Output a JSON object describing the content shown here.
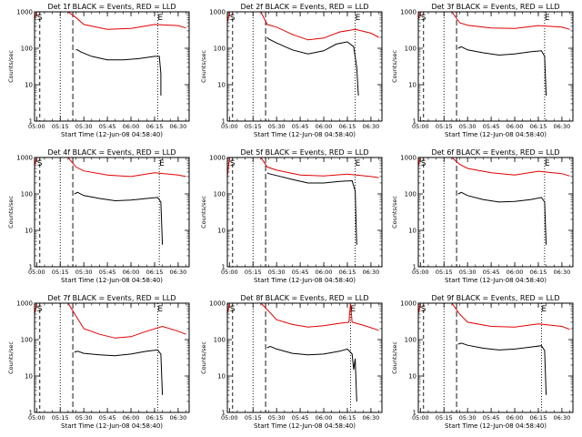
{
  "colors": {
    "events": "#000000",
    "lld": "#e00000",
    "axes": "#000000",
    "background": "#ffffff"
  },
  "chart_data": [
    {
      "type": "line",
      "title": "Det 1f BLACK = Events, RED = LLD",
      "xlabel": "Start Time (12-Jun-08 04:58:40)",
      "ylabel": "Counts/sec",
      "x_ticks": [
        "05:00",
        "05:15",
        "05:30",
        "05:45",
        "06:00",
        "06:15",
        "06:30"
      ],
      "y_ticks": [
        "1",
        "10",
        "100",
        "1000"
      ],
      "ylim": [
        1,
        1000
      ],
      "y_scale": "log",
      "xlim": [
        "04:58:40",
        "06:37:00"
      ],
      "annotations": [
        "S",
        "E"
      ],
      "marker_lines": [
        "05:02",
        "05:15",
        "05:23",
        "06:17"
      ],
      "series": [
        {
          "name": "Events",
          "x": [
            "05:25",
            "05:26",
            "05:28",
            "05:35",
            "05:45",
            "05:55",
            "06:05",
            "06:15",
            "06:18",
            "06:19",
            "06:19"
          ],
          "values": [
            90,
            90,
            80,
            60,
            48,
            48,
            52,
            60,
            60,
            20,
            5
          ]
        },
        {
          "name": "LLD",
          "x": [
            "04:58:40",
            "05:00",
            "05:02",
            "05:05",
            "05:10",
            "05:15",
            "05:20",
            "05:25",
            "05:30",
            "05:45",
            "06:00",
            "06:15",
            "06:30",
            "06:35"
          ],
          "values": [
            600,
            1000,
            1000,
            1000,
            1000,
            1000,
            1000,
            700,
            450,
            330,
            350,
            450,
            420,
            360
          ]
        }
      ]
    },
    {
      "type": "line",
      "title": "Det 2f BLACK = Events, RED = LLD",
      "xlabel": "Start Time (12-Jun-08 04:58:40)",
      "ylabel": "Counts/sec",
      "x_ticks": [
        "05:00",
        "05:15",
        "05:30",
        "05:45",
        "06:00",
        "06:15",
        "06:30"
      ],
      "y_ticks": [
        "1",
        "10",
        "100",
        "1000"
      ],
      "ylim": [
        1,
        1000
      ],
      "y_scale": "log",
      "xlim": [
        "04:58:40",
        "06:37:00"
      ],
      "annotations": [
        "S",
        "E"
      ],
      "marker_lines": [
        "05:02",
        "05:15",
        "05:23",
        "06:20"
      ],
      "series": [
        {
          "name": "Events",
          "x": [
            "05:24",
            "05:25",
            "05:30",
            "05:40",
            "05:50",
            "06:00",
            "06:08",
            "06:15",
            "06:19",
            "06:21",
            "06:22"
          ],
          "values": [
            200,
            180,
            140,
            90,
            70,
            85,
            130,
            150,
            110,
            30,
            5
          ]
        },
        {
          "name": "LLD",
          "x": [
            "04:58:40",
            "05:00",
            "05:05",
            "05:15",
            "05:20",
            "05:24",
            "05:30",
            "05:40",
            "05:50",
            "06:00",
            "06:10",
            "06:20",
            "06:30",
            "06:35"
          ],
          "values": [
            500,
            1000,
            1000,
            1000,
            1000,
            450,
            380,
            240,
            170,
            190,
            280,
            330,
            260,
            200
          ]
        }
      ]
    },
    {
      "type": "line",
      "title": "Det 3f BLACK = Events, RED = LLD",
      "xlabel": "Start Time (12-Jun-08 04:58:40)",
      "ylabel": "Counts/sec",
      "x_ticks": [
        "05:00",
        "05:15",
        "05:30",
        "05:45",
        "06:00",
        "06:15",
        "06:30"
      ],
      "y_ticks": [
        "1",
        "10",
        "100",
        "1000"
      ],
      "ylim": [
        1,
        1000
      ],
      "y_scale": "log",
      "xlim": [
        "04:58:40",
        "06:37:00"
      ],
      "annotations": [
        "S",
        "E"
      ],
      "marker_lines": [
        "05:02",
        "05:15",
        "05:23",
        "06:19"
      ],
      "series": [
        {
          "name": "Events",
          "x": [
            "05:24",
            "05:26",
            "05:30",
            "05:40",
            "05:50",
            "06:00",
            "06:10",
            "06:17",
            "06:19",
            "06:20"
          ],
          "values": [
            100,
            110,
            90,
            75,
            65,
            70,
            80,
            85,
            60,
            5
          ]
        },
        {
          "name": "LLD",
          "x": [
            "04:58:40",
            "05:00",
            "05:05",
            "05:15",
            "05:20",
            "05:25",
            "05:30",
            "05:45",
            "06:00",
            "06:15",
            "06:30",
            "06:35"
          ],
          "values": [
            600,
            1000,
            1000,
            1000,
            1000,
            500,
            430,
            360,
            350,
            420,
            380,
            330
          ]
        }
      ]
    },
    {
      "type": "line",
      "title": "Det 4f BLACK = Events, RED = LLD",
      "xlabel": "Start Time (12-Jun-08 04:58:40)",
      "ylabel": "Counts/sec",
      "x_ticks": [
        "05:00",
        "05:15",
        "05:30",
        "05:45",
        "06:00",
        "06:15",
        "06:30"
      ],
      "y_ticks": [
        "1",
        "10",
        "100",
        "1000"
      ],
      "ylim": [
        1,
        1000
      ],
      "y_scale": "log",
      "xlim": [
        "04:58:40",
        "06:37:00"
      ],
      "annotations": [
        "S",
        "E"
      ],
      "marker_lines": [
        "05:02",
        "05:15",
        "05:23",
        "06:18"
      ],
      "series": [
        {
          "name": "Events",
          "x": [
            "05:24",
            "05:26",
            "05:30",
            "05:40",
            "05:50",
            "06:00",
            "06:10",
            "06:17",
            "06:19",
            "06:20"
          ],
          "values": [
            100,
            110,
            90,
            75,
            65,
            68,
            75,
            80,
            60,
            4
          ]
        },
        {
          "name": "LLD",
          "x": [
            "04:58:40",
            "05:00",
            "05:05",
            "05:15",
            "05:20",
            "05:25",
            "05:30",
            "05:45",
            "06:00",
            "06:15",
            "06:30",
            "06:35"
          ],
          "values": [
            600,
            1000,
            1000,
            1000,
            1000,
            550,
            430,
            330,
            300,
            380,
            330,
            300
          ]
        }
      ]
    },
    {
      "type": "line",
      "title": "Det 5f BLACK = Events, RED = LLD",
      "xlabel": "Start Time (12-Jun-08 04:58:40)",
      "ylabel": "Counts/sec",
      "x_ticks": [
        "05:00",
        "05:15",
        "05:30",
        "05:45",
        "06:00",
        "06:15",
        "06:30"
      ],
      "y_ticks": [
        "1",
        "10",
        "100",
        "1000"
      ],
      "ylim": [
        1,
        1000
      ],
      "y_scale": "log",
      "xlim": [
        "04:58:40",
        "06:37:00"
      ],
      "annotations": [
        "S",
        "E"
      ],
      "marker_lines": [
        "05:02",
        "05:15",
        "05:23",
        "06:20"
      ],
      "series": [
        {
          "name": "Events",
          "x": [
            "05:24",
            "05:25",
            "05:30",
            "05:40",
            "05:50",
            "06:00",
            "06:10",
            "06:18",
            "06:20",
            "06:21"
          ],
          "values": [
            380,
            360,
            320,
            250,
            200,
            200,
            220,
            230,
            120,
            4
          ]
        },
        {
          "name": "LLD",
          "x": [
            "04:58:40",
            "05:00",
            "05:05",
            "05:15",
            "05:20",
            "05:24",
            "05:30",
            "05:45",
            "06:00",
            "06:15",
            "06:30",
            "06:35"
          ],
          "values": [
            300,
            1000,
            1000,
            1000,
            1000,
            550,
            450,
            330,
            310,
            350,
            300,
            280
          ]
        }
      ]
    },
    {
      "type": "line",
      "title": "Det 6f BLACK = Events, RED = LLD",
      "xlabel": "Start Time (12-Jun-08 04:58:40)",
      "ylabel": "Counts/sec",
      "x_ticks": [
        "05:00",
        "05:15",
        "05:30",
        "05:45",
        "06:00",
        "06:15",
        "06:30"
      ],
      "y_ticks": [
        "1",
        "10",
        "100",
        "1000"
      ],
      "ylim": [
        1,
        1000
      ],
      "y_scale": "log",
      "xlim": [
        "04:58:40",
        "06:37:00"
      ],
      "annotations": [
        "S",
        "E"
      ],
      "marker_lines": [
        "05:02",
        "05:15",
        "05:23",
        "06:19"
      ],
      "series": [
        {
          "name": "Events",
          "x": [
            "05:24",
            "05:26",
            "05:30",
            "05:40",
            "05:50",
            "06:00",
            "06:10",
            "06:17",
            "06:19",
            "06:20"
          ],
          "values": [
            100,
            110,
            90,
            70,
            60,
            62,
            70,
            80,
            60,
            4
          ]
        },
        {
          "name": "LLD",
          "x": [
            "04:58:40",
            "05:00",
            "05:05",
            "05:15",
            "05:20",
            "05:25",
            "05:30",
            "05:45",
            "06:00",
            "06:15",
            "06:30",
            "06:35"
          ],
          "values": [
            600,
            1000,
            1000,
            1000,
            1000,
            650,
            500,
            380,
            330,
            420,
            360,
            310
          ]
        }
      ]
    },
    {
      "type": "line",
      "title": "Det 7f BLACK = Events, RED = LLD",
      "xlabel": "Start Time (12-Jun-08 04:58:40)",
      "ylabel": "Counts/sec",
      "x_ticks": [
        "05:00",
        "05:15",
        "05:30",
        "05:45",
        "06:00",
        "06:15",
        "06:30"
      ],
      "y_ticks": [
        "1",
        "10",
        "100",
        "1000"
      ],
      "ylim": [
        1,
        1000
      ],
      "y_scale": "log",
      "xlim": [
        "04:58:40",
        "06:37:00"
      ],
      "annotations": [
        "S",
        "E"
      ],
      "marker_lines": [
        "05:02",
        "05:15",
        "05:23",
        "06:17"
      ],
      "series": [
        {
          "name": "Events",
          "x": [
            "05:24",
            "05:26",
            "05:30",
            "05:40",
            "05:50",
            "06:00",
            "06:10",
            "06:17",
            "06:19",
            "06:20"
          ],
          "values": [
            45,
            48,
            42,
            38,
            36,
            40,
            48,
            52,
            40,
            3
          ]
        },
        {
          "name": "LLD",
          "x": [
            "04:58:40",
            "05:00",
            "05:05",
            "05:15",
            "05:20",
            "05:25",
            "05:30",
            "05:40",
            "05:50",
            "06:00",
            "06:10",
            "06:20",
            "06:30",
            "06:35"
          ],
          "values": [
            500,
            1000,
            1000,
            1000,
            1000,
            450,
            200,
            140,
            110,
            120,
            170,
            230,
            170,
            140
          ]
        }
      ]
    },
    {
      "type": "line",
      "title": "Det 8f BLACK = Events, RED = LLD",
      "xlabel": "Start Time (12-Jun-08 04:58:40)",
      "ylabel": "Counts/sec",
      "x_ticks": [
        "05:00",
        "05:15",
        "05:30",
        "05:45",
        "06:00",
        "06:15",
        "06:30"
      ],
      "y_ticks": [
        "1",
        "10",
        "100",
        "1000"
      ],
      "ylim": [
        1,
        1000
      ],
      "y_scale": "log",
      "xlim": [
        "04:58:40",
        "06:37:00"
      ],
      "annotations": [
        "S",
        "E"
      ],
      "marker_lines": [
        "05:02",
        "05:15",
        "05:23",
        "06:17"
      ],
      "series": [
        {
          "name": "Events",
          "x": [
            "05:24",
            "05:26",
            "05:30",
            "05:40",
            "05:50",
            "06:00",
            "06:10",
            "06:15",
            "06:18",
            "06:19",
            "06:20",
            "06:21"
          ],
          "values": [
            60,
            65,
            55,
            42,
            38,
            40,
            48,
            55,
            40,
            15,
            30,
            2
          ]
        },
        {
          "name": "LLD",
          "x": [
            "04:58:40",
            "05:00",
            "05:05",
            "05:15",
            "05:20",
            "05:25",
            "05:30",
            "05:40",
            "05:50",
            "06:00",
            "06:10",
            "06:16",
            "06:17",
            "06:18",
            "06:25",
            "06:35"
          ],
          "values": [
            500,
            1000,
            1000,
            1000,
            1000,
            600,
            350,
            260,
            220,
            240,
            280,
            300,
            1000,
            300,
            250,
            180
          ]
        }
      ]
    },
    {
      "type": "line",
      "title": "Det 9f BLACK = Events, RED = LLD",
      "xlabel": "Start Time (12-Jun-08 04:58:40)",
      "ylabel": "Counts/sec",
      "x_ticks": [
        "05:00",
        "05:15",
        "05:30",
        "05:45",
        "06:00",
        "06:15",
        "06:30"
      ],
      "y_ticks": [
        "1",
        "10",
        "100",
        "1000"
      ],
      "ylim": [
        1,
        1000
      ],
      "y_scale": "log",
      "xlim": [
        "04:58:40",
        "06:37:00"
      ],
      "annotations": [
        "S",
        "E"
      ],
      "marker_lines": [
        "05:02",
        "05:15",
        "05:23",
        "06:17"
      ],
      "series": [
        {
          "name": "Events",
          "x": [
            "05:24",
            "05:26",
            "05:30",
            "05:40",
            "05:50",
            "06:00",
            "06:10",
            "06:17",
            "06:19",
            "06:20"
          ],
          "values": [
            75,
            80,
            70,
            58,
            52,
            55,
            62,
            68,
            50,
            3
          ]
        },
        {
          "name": "LLD",
          "x": [
            "04:58:40",
            "05:00",
            "05:05",
            "05:15",
            "05:20",
            "05:25",
            "05:30",
            "05:45",
            "06:00",
            "06:15",
            "06:30",
            "06:35"
          ],
          "values": [
            500,
            1000,
            1000,
            1000,
            1000,
            500,
            300,
            230,
            220,
            270,
            230,
            190
          ]
        }
      ]
    }
  ]
}
